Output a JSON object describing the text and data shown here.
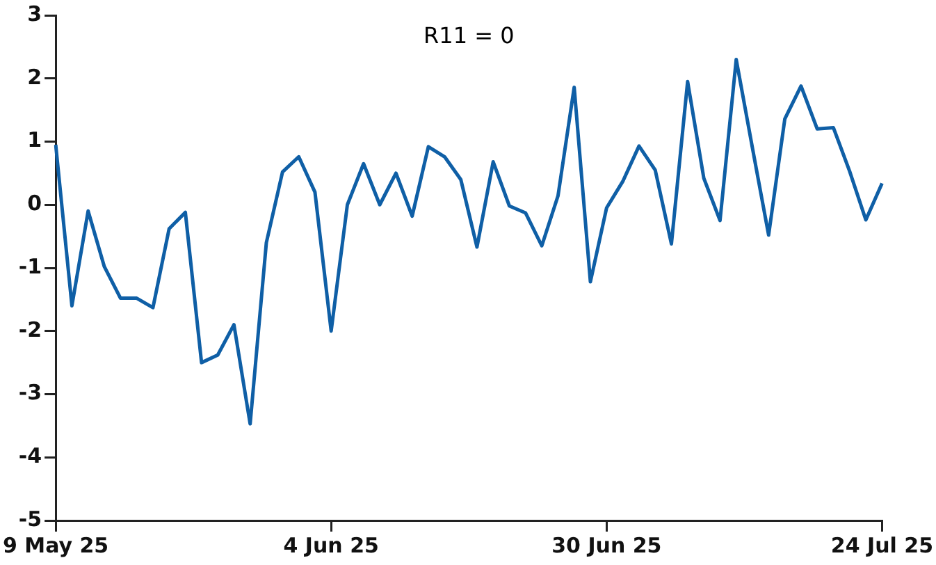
{
  "chart_data": {
    "type": "line",
    "annotations": [
      "R11 = 0"
    ],
    "categories": [
      "9 May 25",
      null,
      null,
      null,
      null,
      null,
      null,
      null,
      null,
      null,
      null,
      null,
      null,
      null,
      null,
      null,
      null,
      "4 Jun 25",
      null,
      null,
      null,
      null,
      null,
      null,
      null,
      null,
      null,
      null,
      null,
      null,
      null,
      null,
      null,
      null,
      "30 Jun 25",
      null,
      null,
      null,
      null,
      null,
      null,
      null,
      null,
      null,
      null,
      null,
      null,
      null,
      null,
      null,
      null,
      "24 Jul 25"
    ],
    "series": [
      {
        "color": "#0f5fa6",
        "values": [
          0.95,
          -1.6,
          -0.1,
          -0.98,
          -1.48,
          -1.48,
          -1.63,
          -0.38,
          -0.12,
          -2.5,
          -2.38,
          -1.9,
          -3.47,
          -0.6,
          0.52,
          0.76,
          0.2,
          -2.0,
          0,
          0.65,
          0,
          0.5,
          -0.18,
          0.92,
          0.76,
          0.4,
          -0.67,
          0.68,
          -0.02,
          -0.13,
          -0.65,
          0.14,
          1.86,
          -1.22,
          -0.05,
          0.37,
          0.93,
          0.55,
          -0.62,
          1.95,
          0.42,
          -0.25,
          2.3,
          0.9,
          -0.48,
          1.36,
          1.88,
          1.2,
          1.22,
          0.53,
          -0.24,
          0.34
        ]
      }
    ],
    "ylim": [
      -5,
      3
    ],
    "yticks": [
      -5,
      -4,
      -3,
      -2,
      -1,
      0,
      1,
      2,
      3
    ],
    "grid": false,
    "legend": false,
    "marker": "none",
    "line_style": "solid"
  }
}
